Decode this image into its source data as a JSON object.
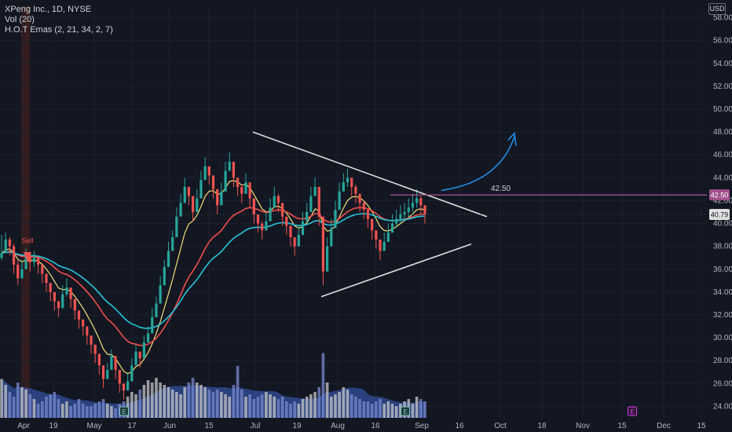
{
  "header": {
    "line1": "XPeng Inc., 1D, NYSE",
    "line2": "Vol (20)",
    "line3": "H.O.T Emas (2, 21, 34, 2, 7)",
    "currency": "USD"
  },
  "chart_data": {
    "type": "candlestick",
    "ylim": [
      23,
      59
    ],
    "y_ticks": [
      "24.00",
      "26.00",
      "28.00",
      "30.00",
      "32.00",
      "34.00",
      "36.00",
      "38.00",
      "40.00",
      "42.00",
      "44.00",
      "46.00",
      "48.00",
      "50.00",
      "52.00",
      "54.00",
      "56.00",
      "58.00"
    ],
    "x_ticks": [
      "Apr",
      "19",
      "May",
      "17",
      "Jun",
      "15",
      "Jul",
      "19",
      "Aug",
      "16",
      "Sep",
      "16",
      "Oct",
      "18",
      "Nov",
      "15",
      "Dec",
      "15"
    ],
    "price_labels": {
      "resistance": "42.50",
      "last": "40.79"
    },
    "annotations": {
      "sell_label": "Sell",
      "resistance_label": "42.50",
      "earnings_marks": [
        "E",
        "E",
        "E"
      ]
    },
    "colors": {
      "up": "#ef5350",
      "down": "#26a69a",
      "bg": "#131722",
      "ema_fast": "#f5e07a",
      "ema_mid": "#f04e4e",
      "ema_slow": "#26c6da",
      "volume_ma": "#3f64c8",
      "volume_up": "#c8c8c8",
      "volume_down": "#7b8bd0",
      "resistance_line": "#a0508a",
      "arrow": "#2196f3",
      "triangle": "#e0e0e0"
    },
    "candles_close": [
      37.4,
      38.6,
      38.0,
      36.4,
      35.2,
      36.0,
      37.2,
      36.6,
      37.0,
      36.4,
      35.6,
      34.8,
      34.0,
      33.2,
      32.6,
      33.8,
      34.4,
      33.4,
      32.4,
      31.6,
      31.0,
      30.2,
      29.4,
      28.6,
      27.6,
      26.4,
      27.2,
      28.4,
      27.2,
      26.0,
      25.4,
      26.2,
      27.6,
      28.8,
      28.2,
      29.6,
      30.4,
      31.8,
      33.0,
      34.6,
      36.2,
      37.6,
      38.8,
      40.6,
      41.8,
      43.2,
      42.4,
      41.0,
      42.2,
      43.8,
      45.0,
      44.2,
      43.0,
      41.6,
      42.8,
      44.6,
      45.4,
      44.0,
      43.2,
      42.6,
      43.6,
      42.2,
      40.8,
      40.0,
      39.4,
      40.2,
      41.4,
      42.4,
      41.8,
      40.6,
      39.8,
      38.8,
      38.0,
      39.0,
      40.2,
      41.0,
      42.4,
      43.2,
      40.6,
      35.8,
      38.0,
      39.6,
      41.2,
      42.8,
      43.6,
      44.0,
      43.2,
      42.6,
      41.8,
      41.2,
      40.4,
      39.4,
      38.6,
      37.6,
      38.4,
      39.2,
      40.0,
      40.4,
      40.8,
      41.0,
      41.4,
      41.8,
      42.2,
      41.6,
      40.79
    ],
    "candles_range": [
      [
        36.8,
        39.0
      ],
      [
        37.8,
        39.2
      ],
      [
        37.2,
        38.8
      ],
      [
        35.6,
        38.2
      ],
      [
        34.6,
        36.8
      ],
      [
        35.2,
        36.8
      ],
      [
        36.4,
        37.8
      ],
      [
        35.8,
        37.4
      ],
      [
        36.2,
        37.6
      ],
      [
        35.6,
        37.0
      ],
      [
        34.8,
        36.2
      ],
      [
        34.0,
        35.4
      ],
      [
        33.2,
        34.6
      ],
      [
        32.4,
        33.8
      ],
      [
        31.8,
        33.2
      ],
      [
        33.0,
        34.6
      ],
      [
        33.6,
        35.2
      ],
      [
        32.6,
        34.2
      ],
      [
        31.6,
        33.0
      ],
      [
        30.8,
        32.2
      ],
      [
        30.2,
        31.6
      ],
      [
        29.4,
        30.8
      ],
      [
        28.6,
        30.0
      ],
      [
        27.8,
        29.2
      ],
      [
        26.8,
        28.2
      ],
      [
        25.6,
        27.0
      ],
      [
        26.4,
        27.8
      ],
      [
        27.6,
        29.0
      ],
      [
        26.4,
        27.8
      ],
      [
        25.2,
        26.6
      ],
      [
        24.6,
        26.0
      ],
      [
        25.4,
        26.8
      ],
      [
        26.8,
        28.2
      ],
      [
        28.0,
        29.4
      ],
      [
        27.4,
        28.8
      ],
      [
        28.8,
        30.2
      ],
      [
        29.6,
        31.0
      ],
      [
        31.0,
        32.6
      ],
      [
        32.2,
        33.6
      ],
      [
        33.8,
        35.4
      ],
      [
        35.4,
        36.8
      ],
      [
        36.8,
        38.4
      ],
      [
        38.0,
        39.4
      ],
      [
        39.8,
        41.4
      ],
      [
        41.0,
        42.6
      ],
      [
        42.4,
        44.0
      ],
      [
        41.6,
        43.2
      ],
      [
        40.2,
        41.8
      ],
      [
        41.4,
        43.0
      ],
      [
        43.0,
        44.6
      ],
      [
        44.2,
        45.8
      ],
      [
        43.4,
        45.0
      ],
      [
        42.2,
        43.8
      ],
      [
        40.8,
        42.4
      ],
      [
        42.0,
        43.6
      ],
      [
        43.8,
        45.4
      ],
      [
        44.6,
        46.2
      ],
      [
        43.2,
        44.8
      ],
      [
        42.4,
        44.0
      ],
      [
        41.8,
        43.4
      ],
      [
        42.8,
        44.4
      ],
      [
        41.4,
        43.0
      ],
      [
        40.0,
        41.6
      ],
      [
        39.2,
        40.8
      ],
      [
        38.6,
        40.2
      ],
      [
        39.4,
        41.0
      ],
      [
        40.6,
        42.2
      ],
      [
        41.6,
        43.2
      ],
      [
        41.0,
        42.6
      ],
      [
        39.8,
        41.4
      ],
      [
        39.0,
        40.6
      ],
      [
        38.0,
        39.6
      ],
      [
        37.2,
        38.8
      ],
      [
        38.2,
        39.8
      ],
      [
        39.4,
        41.0
      ],
      [
        40.2,
        41.8
      ],
      [
        41.6,
        43.2
      ],
      [
        42.4,
        44.0
      ],
      [
        39.8,
        41.4
      ],
      [
        34.6,
        36.6
      ],
      [
        37.2,
        38.8
      ],
      [
        38.8,
        40.4
      ],
      [
        40.4,
        42.0
      ],
      [
        42.0,
        43.6
      ],
      [
        42.8,
        44.4
      ],
      [
        43.2,
        44.8
      ],
      [
        42.4,
        44.0
      ],
      [
        41.8,
        43.4
      ],
      [
        41.0,
        42.6
      ],
      [
        40.4,
        42.0
      ],
      [
        39.6,
        41.2
      ],
      [
        38.6,
        40.2
      ],
      [
        37.8,
        39.4
      ],
      [
        36.8,
        38.4
      ],
      [
        37.6,
        39.2
      ],
      [
        38.4,
        40.0
      ],
      [
        39.2,
        40.8
      ],
      [
        39.6,
        41.2
      ],
      [
        40.0,
        41.6
      ],
      [
        40.2,
        41.8
      ],
      [
        40.6,
        42.2
      ],
      [
        41.0,
        42.6
      ],
      [
        41.4,
        43.0
      ],
      [
        40.8,
        42.4
      ],
      [
        40.0,
        41.6
      ]
    ],
    "volume": [
      0.33,
      0.28,
      0.22,
      0.18,
      0.3,
      0.26,
      0.24,
      0.2,
      0.16,
      0.12,
      0.14,
      0.18,
      0.2,
      0.22,
      0.16,
      0.12,
      0.14,
      0.1,
      0.12,
      0.16,
      0.12,
      0.1,
      0.1,
      0.12,
      0.14,
      0.16,
      0.12,
      0.1,
      0.08,
      0.12,
      0.14,
      0.18,
      0.22,
      0.2,
      0.24,
      0.28,
      0.32,
      0.3,
      0.34,
      0.3,
      0.28,
      0.26,
      0.24,
      0.22,
      0.2,
      0.26,
      0.3,
      0.34,
      0.3,
      0.28,
      0.26,
      0.24,
      0.22,
      0.24,
      0.22,
      0.2,
      0.18,
      0.28,
      0.44,
      0.24,
      0.18,
      0.2,
      0.16,
      0.18,
      0.2,
      0.22,
      0.2,
      0.18,
      0.16,
      0.18,
      0.14,
      0.12,
      0.14,
      0.12,
      0.16,
      0.18,
      0.2,
      0.22,
      0.26,
      0.55,
      0.3,
      0.18,
      0.2,
      0.22,
      0.26,
      0.24,
      0.2,
      0.18,
      0.16,
      0.14,
      0.14,
      0.12,
      0.14,
      0.16,
      0.12,
      0.14,
      0.12,
      0.1,
      0.12,
      0.14,
      0.16,
      0.12,
      0.18,
      0.16,
      0.14
    ]
  }
}
